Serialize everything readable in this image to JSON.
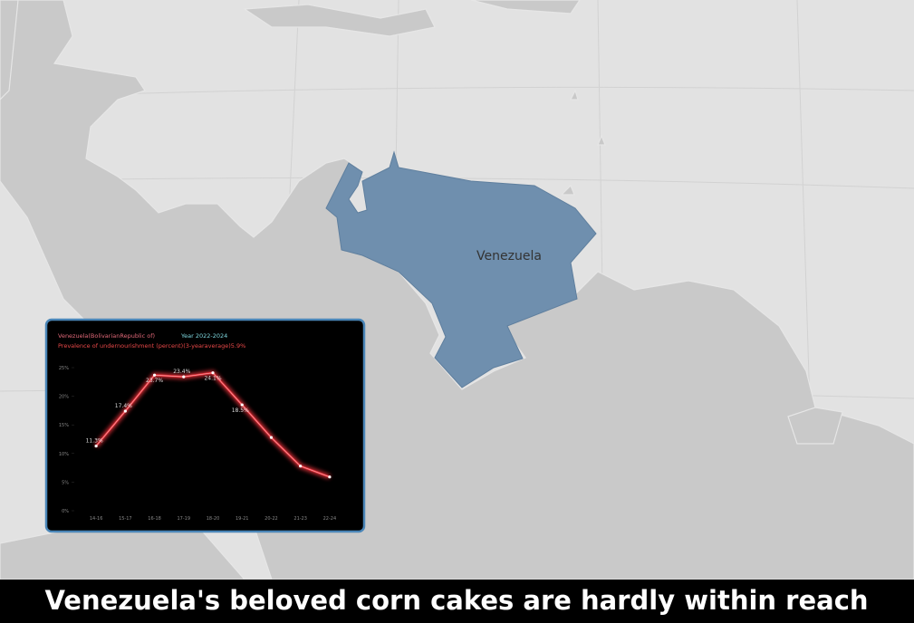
{
  "map": {
    "label": "Venezuela"
  },
  "caption": "Venezuela's beloved corn cakes are hardly within reach",
  "chart_data": {
    "type": "line",
    "title": "Venezuela(BolivarianRepublic of)",
    "year": "Year 2022-2024",
    "subtitle": "Prevalence of undernourishment (percent)(3-yearaverage)5.9%",
    "categories": [
      "14-16",
      "15-17",
      "16-18",
      "17-19",
      "18-20",
      "19-21",
      "20-22",
      "21-23",
      "22-24"
    ],
    "values": [
      11.3,
      17.4,
      23.7,
      23.4,
      24.1,
      18.5,
      12.8,
      7.8,
      5.9
    ],
    "value_labels": [
      "11.3%",
      "17.4%",
      "23.7%",
      "23.4%",
      "24.1%",
      "18.5%",
      null,
      null,
      null
    ],
    "color": "#e8333b",
    "ylim": [
      0,
      25
    ],
    "yticks": [
      {
        "value": 0,
        "label": "0%"
      },
      {
        "value": 5,
        "label": "5%"
      },
      {
        "value": 10,
        "label": "10%"
      },
      {
        "value": 15,
        "label": "15%"
      },
      {
        "value": 20,
        "label": "20%"
      },
      {
        "value": 25,
        "label": "25%"
      }
    ]
  }
}
